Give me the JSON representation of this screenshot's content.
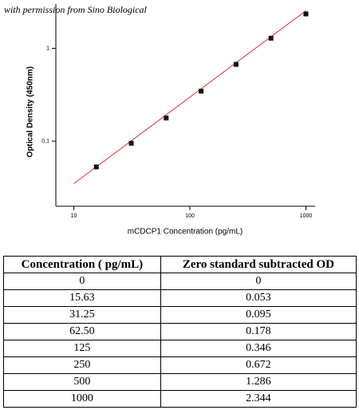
{
  "chart_data": {
    "type": "scatter",
    "annotation": "with permission from Sino Biological",
    "xlabel": "mCDCP1 Concentration (pg/mL)",
    "ylabel": "Optical Density (450nm)",
    "x": [
      15.63,
      31.25,
      62.5,
      125,
      250,
      500,
      1000
    ],
    "values": [
      0.053,
      0.095,
      0.178,
      0.346,
      0.672,
      1.286,
      2.344
    ],
    "color": "#111111",
    "fit": {
      "x": [
        10,
        1000
      ],
      "values": [
        0.035,
        2.54
      ],
      "color": "#e03030"
    },
    "xlog": true,
    "ylog": true,
    "xlim": [
      7,
      1200
    ],
    "ylim": [
      0.02,
      3
    ],
    "xticks": [
      10,
      100,
      1000
    ],
    "yticks": [
      0.1,
      1
    ]
  },
  "table": {
    "header": [
      "Concentration ( pg/mL)",
      "Zero standard subtracted OD"
    ],
    "rows": [
      [
        "0",
        "0"
      ],
      [
        "15.63",
        "0.053"
      ],
      [
        "31.25",
        "0.095"
      ],
      [
        "62.50",
        "0.178"
      ],
      [
        "125",
        "0.346"
      ],
      [
        "250",
        "0.672"
      ],
      [
        "500",
        "1.286"
      ],
      [
        "1000",
        "2.344"
      ]
    ]
  }
}
